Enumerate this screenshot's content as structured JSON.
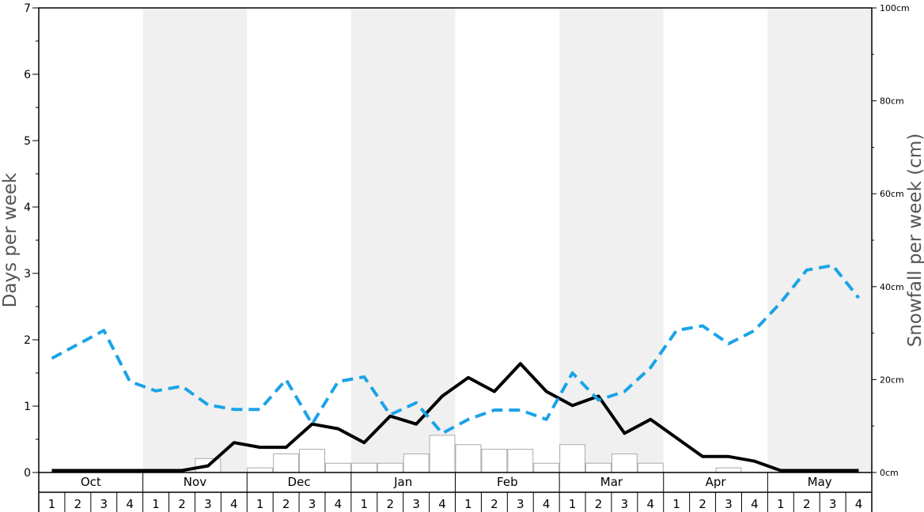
{
  "chart_data": {
    "type": "bar",
    "ylabel_left": "Days per week",
    "ylabel_right": "Snowfall per week (cm)",
    "ylim_left": [
      0,
      7
    ],
    "yticks_left": [
      "0",
      "1",
      "2",
      "3",
      "4",
      "5",
      "6",
      "7"
    ],
    "ylim_right": [
      0,
      100
    ],
    "yticks_right": [
      "0cm",
      "20cm",
      "40cm",
      "60cm",
      "80cm",
      "100cm"
    ],
    "months": [
      "Oct",
      "Nov",
      "Dec",
      "Jan",
      "Feb",
      "Mar",
      "Apr",
      "May"
    ],
    "week_labels": [
      "1",
      "2",
      "3",
      "4"
    ],
    "shaded_months": [
      "Nov",
      "Jan",
      "Mar",
      "May"
    ],
    "grid": false,
    "legend": "none",
    "series": [
      {
        "kind": "bar",
        "axis": "right",
        "color": "#ffffff",
        "stroke": "#aaaaaa",
        "values": [
          0,
          0,
          0,
          0,
          0,
          0,
          3,
          0,
          1,
          4,
          5,
          2,
          2,
          2,
          4,
          8,
          6,
          5,
          5,
          2,
          6,
          2,
          4,
          2,
          0,
          0,
          1,
          0,
          0,
          0,
          0,
          0
        ]
      },
      {
        "kind": "line",
        "axis": "left",
        "color": "#000000",
        "style": "solid",
        "values": [
          0.03,
          0.03,
          0.03,
          0.03,
          0.03,
          0.03,
          0.1,
          0.45,
          0.38,
          0.38,
          0.73,
          0.66,
          0.45,
          0.85,
          0.73,
          1.15,
          1.43,
          1.22,
          1.64,
          1.22,
          1.01,
          1.15,
          0.59,
          0.8,
          0.52,
          0.24,
          0.24,
          0.17,
          0.03,
          0.03,
          0.03,
          0.03
        ]
      },
      {
        "kind": "line",
        "axis": "left",
        "color": "#1aa3e8",
        "style": "dashed",
        "values": [
          1.72,
          1.93,
          2.14,
          1.37,
          1.23,
          1.3,
          1.02,
          0.95,
          0.95,
          1.4,
          0.73,
          1.37,
          1.44,
          0.87,
          1.05,
          0.59,
          0.8,
          0.94,
          0.94,
          0.8,
          1.5,
          1.09,
          1.22,
          1.58,
          2.14,
          2.21,
          1.94,
          2.14,
          2.56,
          3.05,
          3.12,
          2.63
        ]
      }
    ]
  }
}
